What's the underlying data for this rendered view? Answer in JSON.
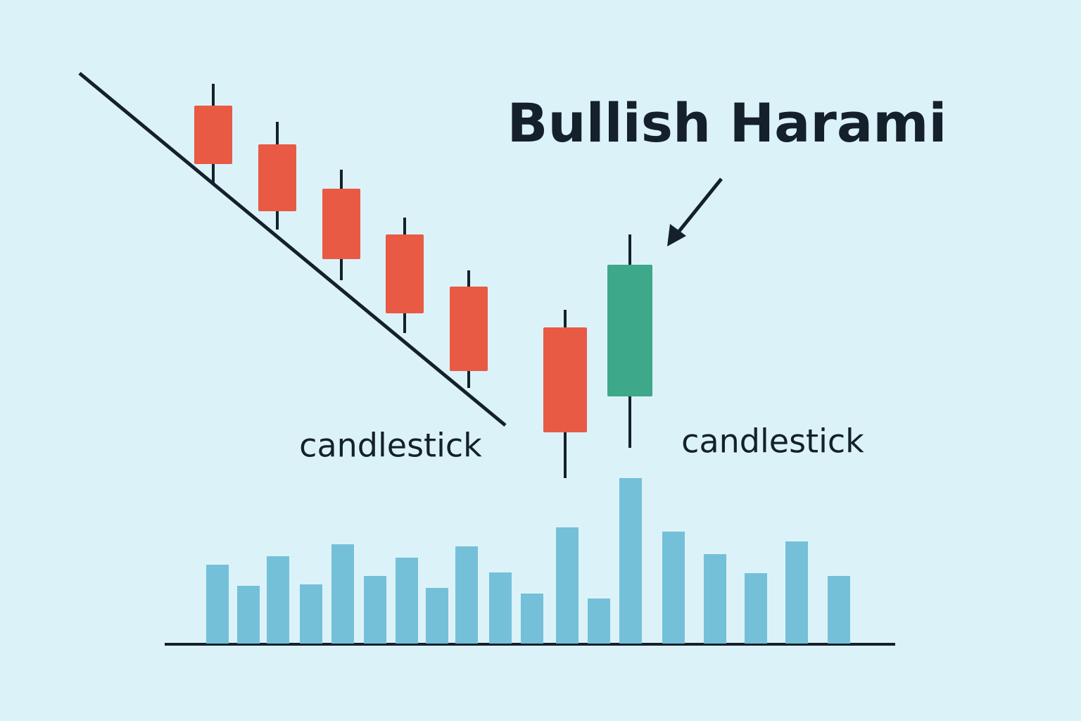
{
  "chart_data": [
    {
      "type": "candlestick",
      "title": "Bullish Harami",
      "annotations": [
        "candlestick",
        "candlestick"
      ],
      "open": [
        874,
        819,
        756,
        691,
        617,
        559,
        461
      ],
      "high": [
        905,
        851,
        783,
        715,
        640,
        584,
        691
      ],
      "low": [
        764,
        698,
        626,
        551,
        473,
        345,
        388
      ],
      "close": [
        791,
        724,
        656,
        579,
        497,
        410,
        648
      ],
      "up_color": "#3ea88a",
      "down_color": "#e85a44"
    },
    {
      "type": "bar",
      "values": [
        112,
        82,
        124,
        84,
        141,
        96,
        122,
        79,
        138,
        101,
        71,
        165,
        64,
        235,
        159,
        127,
        100,
        145,
        96
      ],
      "color": "#74c0d8"
    }
  ]
}
